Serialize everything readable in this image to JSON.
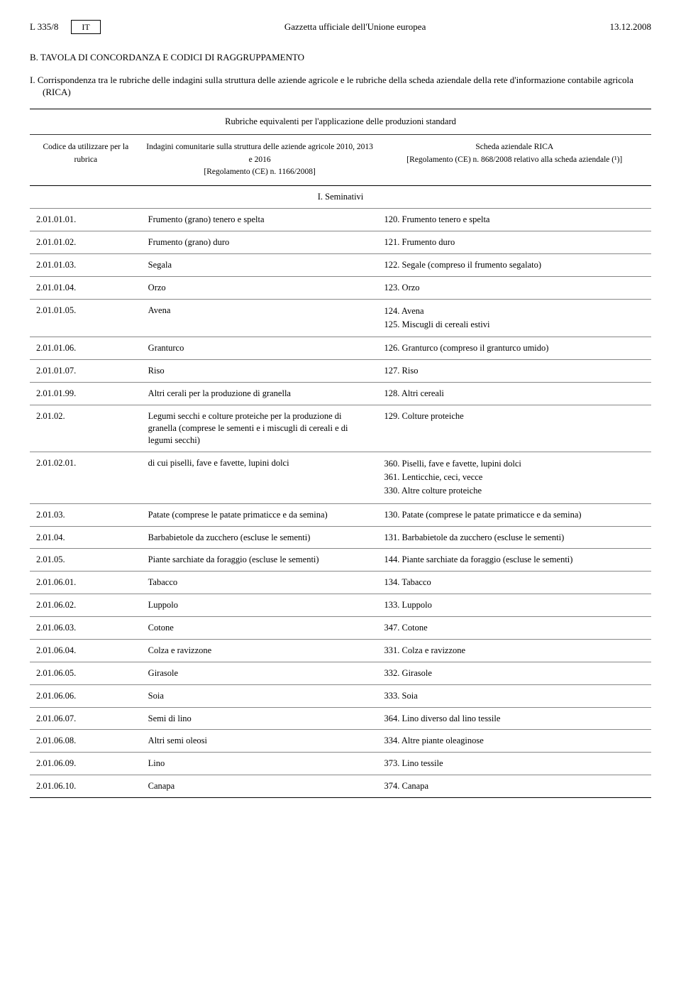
{
  "header": {
    "page_ref": "L 335/8",
    "lang": "IT",
    "title": "Gazzetta ufficiale dell'Unione europea",
    "date": "13.12.2008"
  },
  "headings": {
    "section_b": "B. TAVOLA DI CONCORDANZA E CODICI DI RAGGRUPPAMENTO",
    "section_i": "I. Corrispondenza tra le rubriche delle indagini sulla struttura delle aziende agricole e le rubriche della scheda aziendale della rete d'informazione contabile agricola (RICA)"
  },
  "table": {
    "head1": "Rubriche equivalenti per l'applicazione delle produzioni standard",
    "head2": {
      "c1": "Codice da utilizzare per la rubrica",
      "c2": "Indagini comunitarie sulla struttura delle aziende agricole 2010, 2013 e 2016\n[Regolamento (CE) n. 1166/2008]",
      "c3": "Scheda aziendale RICA\n[Regolamento (CE) n. 868/2008 relativo alla scheda aziendale (¹)]"
    },
    "section_row": "I. Seminativi",
    "rows": [
      {
        "c1": "2.01.01.01.",
        "c2": "Frumento (grano) tenero e spelta",
        "c3": "120. Frumento tenero e spelta"
      },
      {
        "c1": "2.01.01.02.",
        "c2": "Frumento (grano) duro",
        "c3": "121. Frumento duro"
      },
      {
        "c1": "2.01.01.03.",
        "c2": "Segala",
        "c3": "122. Segale (compreso il frumento segalato)"
      },
      {
        "c1": "2.01.01.04.",
        "c2": "Orzo",
        "c3": "123. Orzo"
      },
      {
        "c1": "2.01.01.05.",
        "c2": "Avena",
        "c3": "124. Avena\n125. Miscugli di cereali estivi"
      },
      {
        "c1": "2.01.01.06.",
        "c2": "Granturco",
        "c3": "126. Granturco (compreso il granturco umido)"
      },
      {
        "c1": "2.01.01.07.",
        "c2": "Riso",
        "c3": "127. Riso"
      },
      {
        "c1": "2.01.01.99.",
        "c2": "Altri cerali per la produzione di granella",
        "c3": "128. Altri cereali"
      },
      {
        "c1": "2.01.02.",
        "c2": "Legumi secchi e colture proteiche per la produzione di granella (comprese le sementi e i miscugli di cereali e di legumi secchi)",
        "c3": "129. Colture proteiche"
      },
      {
        "c1": "2.01.02.01.",
        "c2": "di cui piselli, fave e favette, lupini dolci",
        "c3": "360. Piselli, fave e favette, lupini dolci\n361. Lenticchie, ceci, vecce\n330. Altre colture proteiche"
      },
      {
        "c1": "2.01.03.",
        "c2": "Patate (comprese le patate primaticce e da semina)",
        "c3": "130. Patate (comprese le patate primaticce e da semina)"
      },
      {
        "c1": "2.01.04.",
        "c2": "Barbabietole da zucchero (escluse le sementi)",
        "c3": "131. Barbabietole da zucchero (escluse le sementi)"
      },
      {
        "c1": "2.01.05.",
        "c2": "Piante sarchiate da foraggio (escluse le sementi)",
        "c3": "144. Piante sarchiate da foraggio (escluse le sementi)"
      },
      {
        "c1": "2.01.06.01.",
        "c2": "Tabacco",
        "c3": "134. Tabacco"
      },
      {
        "c1": "2.01.06.02.",
        "c2": "Luppolo",
        "c3": "133. Luppolo"
      },
      {
        "c1": "2.01.06.03.",
        "c2": "Cotone",
        "c3": "347. Cotone"
      },
      {
        "c1": "2.01.06.04.",
        "c2": "Colza e ravizzone",
        "c3": "331. Colza e ravizzone"
      },
      {
        "c1": "2.01.06.05.",
        "c2": "Girasole",
        "c3": "332. Girasole"
      },
      {
        "c1": "2.01.06.06.",
        "c2": "Soia",
        "c3": "333. Soia"
      },
      {
        "c1": "2.01.06.07.",
        "c2": "Semi di lino",
        "c3": "364. Lino diverso dal lino tessile"
      },
      {
        "c1": "2.01.06.08.",
        "c2": "Altri semi oleosi",
        "c3": "334. Altre piante oleaginose"
      },
      {
        "c1": "2.01.06.09.",
        "c2": "Lino",
        "c3": "373. Lino tessile"
      },
      {
        "c1": "2.01.06.10.",
        "c2": "Canapa",
        "c3": "374. Canapa"
      }
    ]
  }
}
